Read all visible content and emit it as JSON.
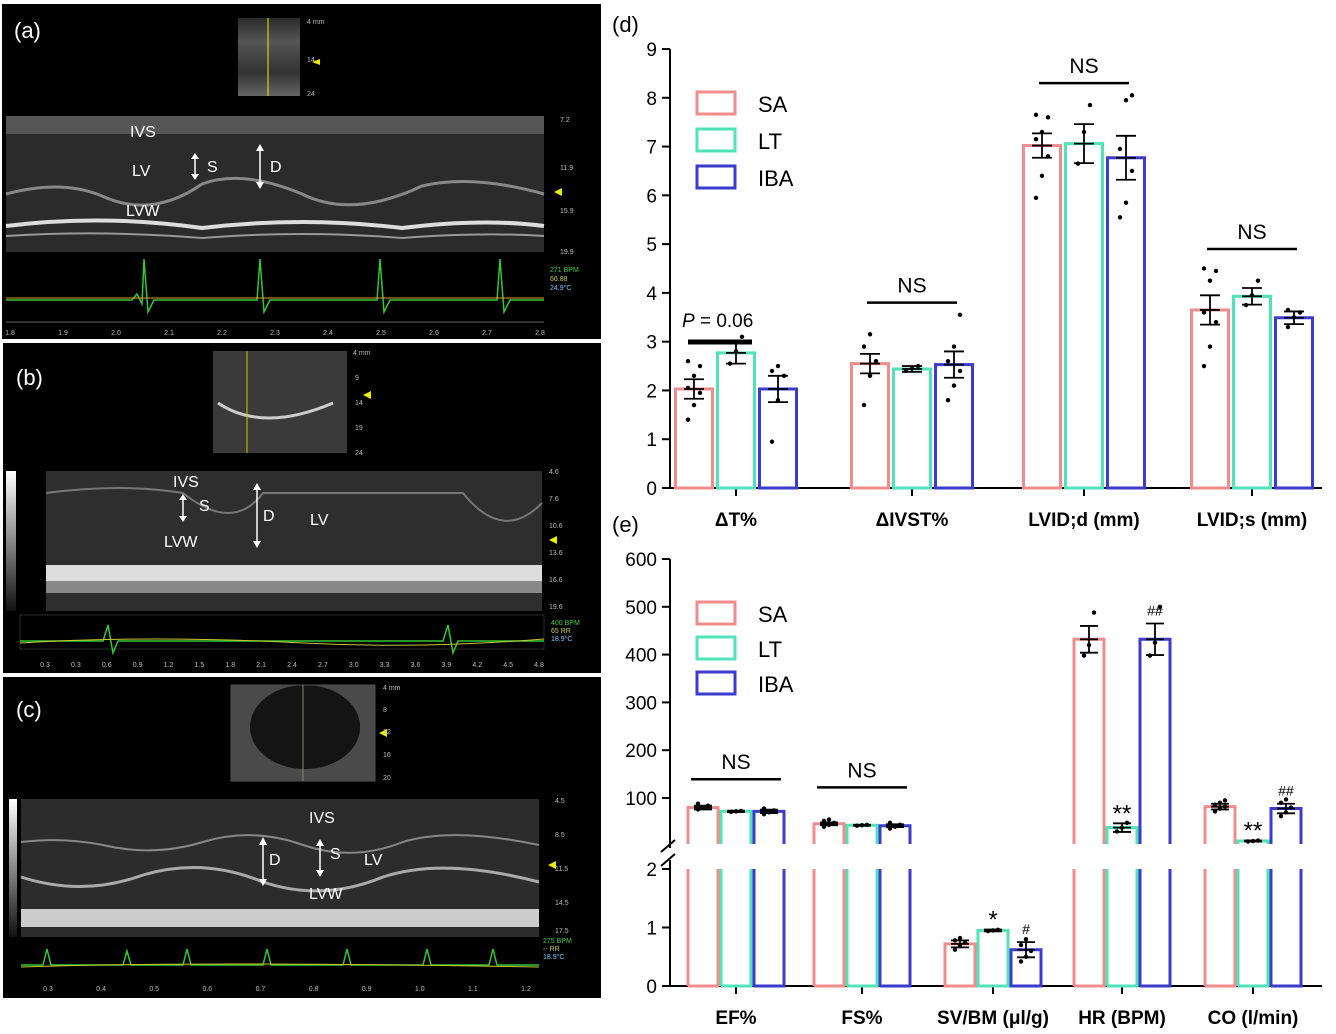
{
  "echo_panels": [
    {
      "label": "(a)",
      "annotations": {
        "ivs": "IVS",
        "lv": "LV",
        "s": "S",
        "d": "D",
        "lvw": "LVW"
      },
      "scale": [
        "4 mm",
        "14",
        "24"
      ],
      "depth": [
        "7.2",
        "11.9",
        "15.9",
        "19.9"
      ],
      "vitals": [
        "271 BPM",
        "66.88",
        "24.9°C"
      ],
      "time": [
        "1.8",
        "1.9",
        "2.0",
        "2.1",
        "2.2",
        "2.3",
        "2.4",
        "2.5",
        "2.6",
        "2.7",
        "2.8"
      ]
    },
    {
      "label": "(b)",
      "annotations": {
        "ivs": "IVS",
        "lv": "LV",
        "s": "S",
        "d": "D",
        "lvw": "LVW"
      },
      "scale": [
        "4 mm",
        "9",
        "14",
        "19",
        "24"
      ],
      "depth": [
        "4.6",
        "7.6",
        "10.6",
        "13.6",
        "16.6",
        "19.6"
      ],
      "vitals": [
        "400 BPM",
        "65 RR",
        "18.9°C"
      ],
      "time": [
        "0.3",
        "0.3",
        "0.6",
        "0.9",
        "1.2",
        "1.5",
        "1.8",
        "2.1",
        "2.4",
        "2.7",
        "3.0",
        "3.3",
        "3.6",
        "3.9",
        "4.2",
        "4.5",
        "4.8"
      ]
    },
    {
      "label": "(c)",
      "annotations": {
        "ivs": "IVS",
        "lv": "LV",
        "s": "S",
        "d": "D",
        "lvw": "LVW"
      },
      "scale": [
        "4 mm",
        "8",
        "12",
        "16",
        "20"
      ],
      "depth": [
        "4.5",
        "8.5",
        "11.5",
        "14.5",
        "17.5"
      ],
      "vitals": [
        "275 BPM",
        "-- RR",
        "18.9°C"
      ],
      "time": [
        "0.3",
        "0.4",
        "0.5",
        "0.6",
        "0.7",
        "0.8",
        "0.9",
        "1.0",
        "1.1",
        "1.2"
      ]
    }
  ],
  "colors": {
    "SA": "#f08c8c",
    "LT": "#4fe3b8",
    "IBA": "#3b3bcf"
  },
  "chart_data": [
    {
      "panel_label": "(d)",
      "type": "bar",
      "categories": [
        "ΔT%",
        "ΔIVST%",
        "LVID;d (mm)",
        "LVID;s (mm)"
      ],
      "ylim": [
        0,
        9
      ],
      "yticks": [
        "0",
        "1",
        "2",
        "3",
        "4",
        "5",
        "6",
        "7",
        "8",
        "9"
      ],
      "legend": {
        "placement": "top-left",
        "entries": [
          "SA",
          "LT",
          "IBA"
        ]
      },
      "series": [
        {
          "name": "SA",
          "values": [
            2.03,
            2.55,
            7.02,
            3.65
          ],
          "err": [
            0.2,
            0.2,
            0.25,
            0.3
          ],
          "points": [
            [
              1.4,
              1.7,
              1.95,
              2.05,
              2.3,
              2.5,
              2.6
            ],
            [
              1.7,
              2.3,
              2.6,
              2.9,
              3.15
            ],
            [
              5.95,
              6.4,
              6.8,
              7.15,
              7.3,
              7.6,
              7.65
            ],
            [
              2.5,
              2.9,
              3.4,
              3.6,
              4.25,
              4.45,
              4.5
            ]
          ]
        },
        {
          "name": "LT",
          "values": [
            2.77,
            2.44,
            7.06,
            3.93
          ],
          "err": [
            0.22,
            0.06,
            0.4,
            0.17
          ],
          "points": [
            [
              2.55,
              2.8,
              3.1
            ],
            [
              2.4,
              2.45,
              2.5
            ],
            [
              6.65,
              7.3,
              7.85
            ],
            [
              3.75,
              3.95,
              4.25
            ]
          ]
        },
        {
          "name": "IBA",
          "values": [
            2.03,
            2.53,
            6.77,
            3.49
          ],
          "err": [
            0.27,
            0.27,
            0.45,
            0.13
          ],
          "points": [
            [
              0.95,
              1.8,
              2.3,
              2.4,
              2.5
            ],
            [
              1.8,
              2.1,
              2.4,
              2.6,
              2.9,
              3.55
            ],
            [
              5.55,
              5.85,
              6.5,
              6.95,
              7.95,
              8.05
            ],
            [
              3.3,
              3.5,
              3.6,
              3.65
            ]
          ]
        }
      ],
      "annotations": [
        {
          "text": "P = 0.06",
          "italic_prefix": "P",
          "suffix": " = 0.06",
          "category": 0,
          "span": "SA-LT",
          "y": 3.3
        },
        {
          "text": "NS",
          "category": 1,
          "span": "SA-IBA",
          "y": 3.8
        },
        {
          "text": "NS",
          "category": 2,
          "span": "SA-IBA",
          "y": 8.3
        },
        {
          "text": "NS",
          "category": 3,
          "span": "SA-IBA",
          "y": 4.9
        }
      ]
    },
    {
      "panel_label": "(e)",
      "type": "bar",
      "categories": [
        "EF%",
        "FS%",
        "SV/BM (μl/g)",
        "HR (BPM)",
        "CO (l/min)"
      ],
      "broken_axis": {
        "lower_range": [
          0,
          2
        ],
        "upper_range": [
          0,
          600
        ]
      },
      "yticks_upper": [
        "100",
        "200",
        "300",
        "400",
        "500",
        "600"
      ],
      "yticks_lower": [
        "0",
        "1",
        "2"
      ],
      "legend": {
        "placement": "top-left",
        "entries": [
          "SA",
          "LT",
          "IBA"
        ]
      },
      "series": [
        {
          "name": "SA",
          "values": [
            80,
            46,
            0.72,
            432,
            82
          ],
          "err": [
            4,
            3,
            0.06,
            28,
            6
          ],
          "points": [
            [
              76,
              80,
              84,
              88
            ],
            [
              40,
              44,
              48,
              52,
              55
            ],
            [
              0.62,
              0.68,
              0.74,
              0.78,
              0.82
            ],
            [
              398,
              420,
              488
            ],
            [
              72,
              78,
              82,
              86,
              90,
              95
            ]
          ]
        },
        {
          "name": "LT",
          "values": [
            72,
            43,
            0.95,
            38,
            10
          ],
          "err": [
            1.5,
            1,
            0.015,
            9,
            1
          ],
          "points": [
            [
              71,
              72,
              73
            ],
            [
              42,
              43,
              44
            ],
            [
              0.94,
              0.95,
              0.96
            ],
            [
              30,
              38,
              48
            ],
            [
              9,
              10,
              11
            ]
          ]
        },
        {
          "name": "IBA",
          "values": [
            72,
            42,
            0.62,
            432,
            78
          ],
          "err": [
            3.5,
            3,
            0.13,
            33,
            10
          ],
          "points": [
            [
              66,
              70,
              74,
              78
            ],
            [
              36,
              40,
              44,
              48
            ],
            [
              0.42,
              0.5,
              0.6,
              0.7,
              0.8
            ],
            [
              398,
              425,
              500
            ],
            [
              62,
              70,
              80,
              90,
              97
            ]
          ]
        }
      ],
      "annotations": [
        {
          "text": "NS",
          "category": 0,
          "span": "SA-IBA",
          "value": 110
        },
        {
          "text": "NS",
          "category": 1,
          "span": "SA-IBA",
          "value": 93
        },
        {
          "text": "*",
          "category": 2,
          "series": "LT"
        },
        {
          "text": "#",
          "category": 2,
          "series": "IBA"
        },
        {
          "text": "**",
          "category": 3,
          "series": "LT"
        },
        {
          "text": "##",
          "category": 3,
          "series": "IBA"
        },
        {
          "text": "**",
          "category": 4,
          "series": "LT"
        },
        {
          "text": "##",
          "category": 4,
          "series": "IBA"
        }
      ]
    }
  ]
}
